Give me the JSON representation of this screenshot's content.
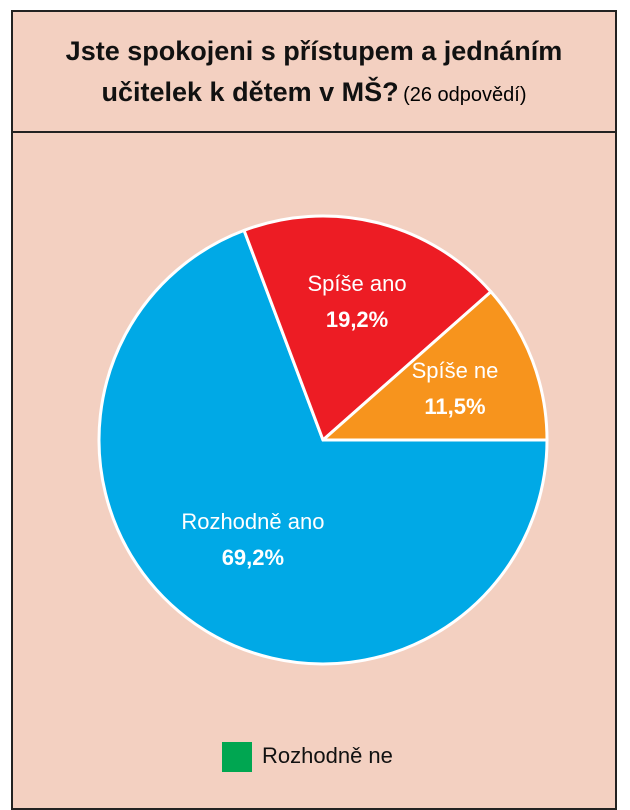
{
  "chart_data": {
    "type": "pie",
    "title": "Jste spokojeni s přístupem a jednáním učitelek k dětem v MŠ?",
    "subtitle": "(26 odpovědí)",
    "categories": [
      "Rozhodně ano",
      "Spíše ano",
      "Spíše ne",
      "Rozhodně ne"
    ],
    "values": [
      69.2,
      19.2,
      11.5,
      0
    ],
    "value_labels": [
      "69,2%",
      "19,2%",
      "11,5%",
      null
    ],
    "colors": [
      "#00a9e6",
      "#ed1c24",
      "#f7941d",
      "#00a651"
    ],
    "legend": "bottom"
  }
}
